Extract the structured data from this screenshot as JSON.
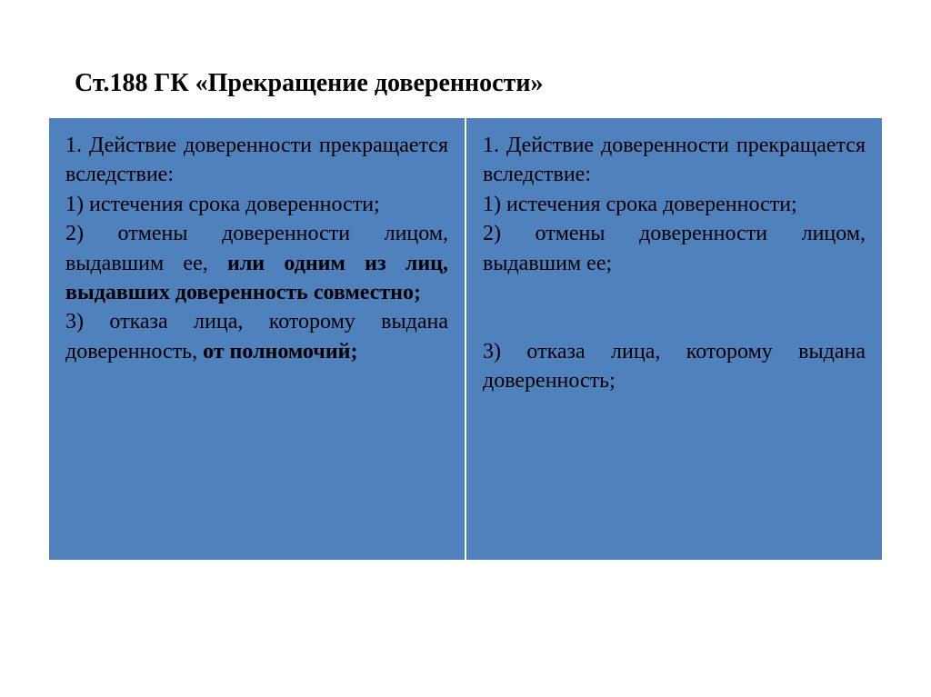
{
  "title": "Ст.188 ГК «Прекращение доверенности»",
  "table": {
    "background_color": "#4f81bd",
    "border_color": "#ffffff",
    "text_color": "#000000",
    "font_size": 24,
    "left": {
      "p1a": "1. Действие доверенности прекращается вследствие:",
      "p1b": "1) истечения срока доверенности;",
      "p2a": "2) отмены доверенности лицом, выдавшим ее, ",
      "p2b": "или одним из лиц, выдавших доверенность совместно;",
      "p3a": "3) отказа лица, которому выдана доверенность, ",
      "p3b": "от полномочий;"
    },
    "right": {
      "p1a": "1. Действие доверенности прекращается вследствие:",
      "p1b": "1) истечения срока доверенности;",
      "p2": "2) отмены доверенности лицом, выдавшим ее;",
      "spacer": " ",
      "p3": "3) отказа лица, которому выдана доверенность;"
    }
  }
}
